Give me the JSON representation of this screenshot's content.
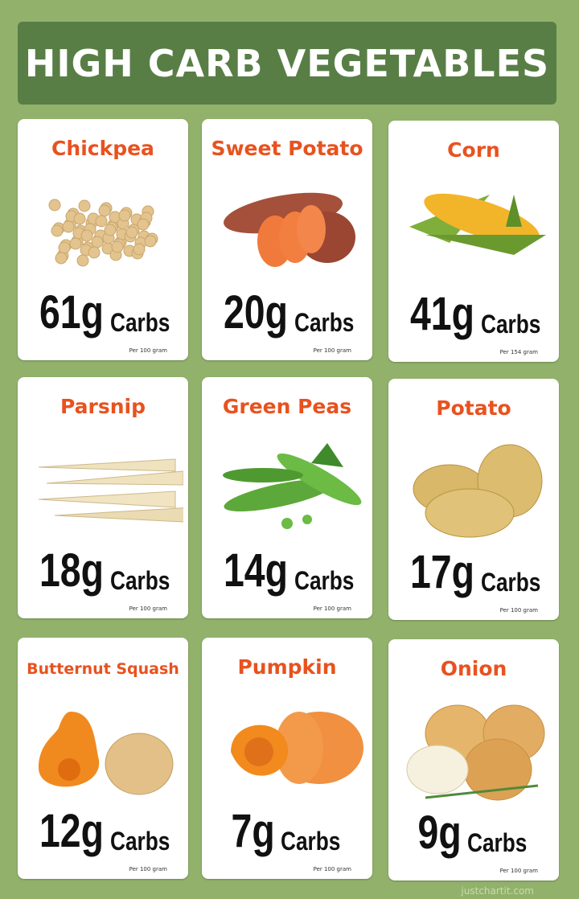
{
  "title": "HIGH CARB VEGETABLES",
  "colors": {
    "background": "#92b26c",
    "title_bar": "#587e46",
    "name": "#e8521f"
  },
  "cards": [
    {
      "name": "Chickpea",
      "amount": "61g",
      "unit": "Carbs",
      "serving": "Per 100 gram",
      "image": "chickpeas"
    },
    {
      "name": "Sweet Potato",
      "amount": "20g",
      "unit": "Carbs",
      "serving": "Per 100 gram",
      "image": "sweet-potato"
    },
    {
      "name": "Corn",
      "amount": "41g",
      "unit": "Carbs",
      "serving": "Per 154 gram",
      "image": "corn"
    },
    {
      "name": "Parsnip",
      "amount": "18g",
      "unit": "Carbs",
      "serving": "Per 100 gram",
      "image": "parsnip"
    },
    {
      "name": "Green Peas",
      "amount": "14g",
      "unit": "Carbs",
      "serving": "Per 100 gram",
      "image": "green-peas"
    },
    {
      "name": "Potato",
      "amount": "17g",
      "unit": "Carbs",
      "serving": "Per 100 gram",
      "image": "potato"
    },
    {
      "name": "Butternut Squash",
      "amount": "12g",
      "unit": "Carbs",
      "serving": "Per 100 gram",
      "image": "butternut-squash"
    },
    {
      "name": "Pumpkin",
      "amount": "7g",
      "unit": "Carbs",
      "serving": "Per 100 gram",
      "image": "pumpkin"
    },
    {
      "name": "Onion",
      "amount": "9g",
      "unit": "Carbs",
      "serving": "Per 100 gram",
      "image": "onion"
    }
  ],
  "footer": "justchartit.com"
}
